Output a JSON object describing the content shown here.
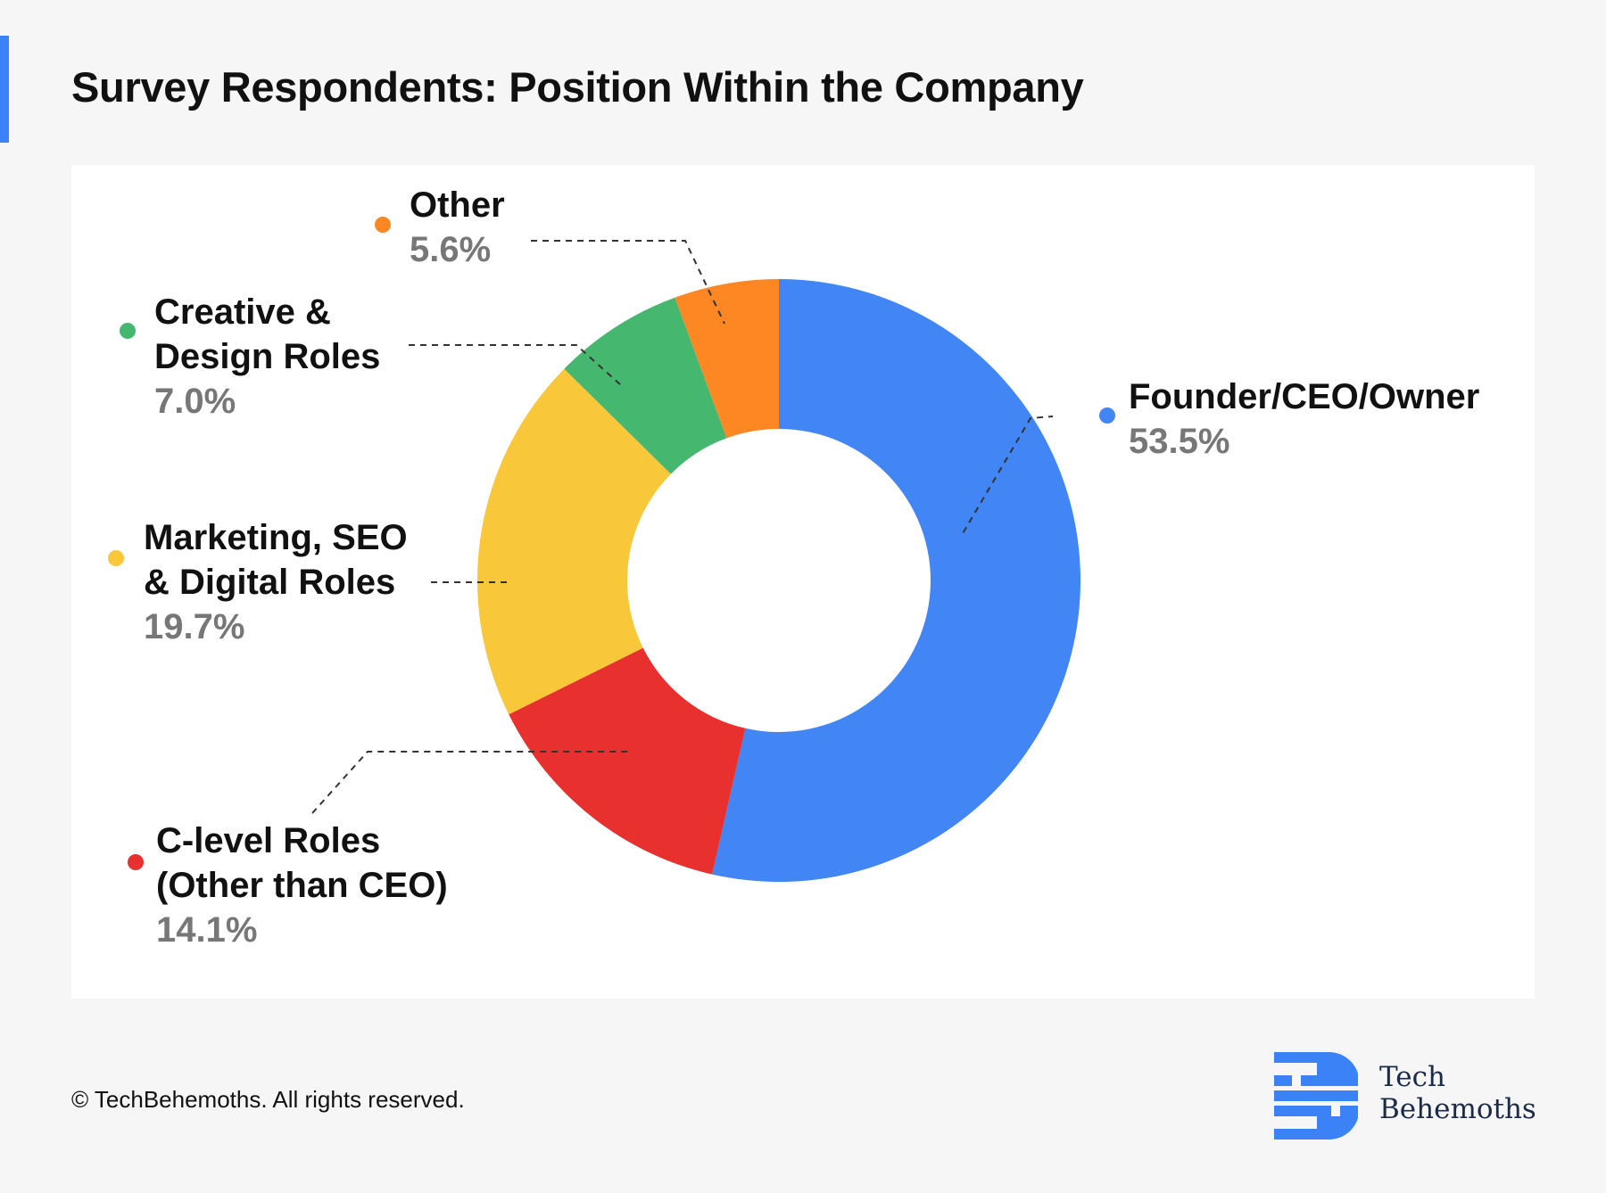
{
  "title": "Survey Respondents: Position Within the Company",
  "colors": {
    "accent": "#3b82f6",
    "label_name": "#111111",
    "label_pct": "#777777"
  },
  "chart_data": {
    "type": "pie",
    "variant": "donut",
    "title": "Survey Respondents: Position Within the Company",
    "slices": [
      {
        "name": "Founder/CEO/Owner",
        "name_lines": [
          "Founder/CEO/Owner"
        ],
        "value": 53.5,
        "label": "53.5%",
        "color": "#4285f4"
      },
      {
        "name": "C-level Roles (Other than CEO)",
        "name_lines": [
          "C-level Roles",
          "(Other than CEO)"
        ],
        "value": 14.1,
        "label": "14.1%",
        "color": "#e8302f"
      },
      {
        "name": "Marketing, SEO & Digital Roles",
        "name_lines": [
          "Marketing, SEO",
          "& Digital Roles"
        ],
        "value": 19.7,
        "label": "19.7%",
        "color": "#f9c83a"
      },
      {
        "name": "Creative & Design Roles",
        "name_lines": [
          "Creative &",
          "Design Roles"
        ],
        "value": 7.0,
        "label": "7.0%",
        "color": "#45b76f"
      },
      {
        "name": "Other",
        "name_lines": [
          "Other"
        ],
        "value": 5.6,
        "label": "5.6%",
        "color": "#fd8723"
      }
    ],
    "start": "12 o'clock",
    "direction": "clockwise",
    "legend": "callout labels with dashed leader lines"
  },
  "footer": {
    "copyright": "© TechBehemoths. All rights reserved."
  },
  "logo": {
    "line1": "Tech",
    "line2": "Behemoths",
    "icon": "techbehemoths-logo-icon",
    "color": "#3b82f6"
  }
}
